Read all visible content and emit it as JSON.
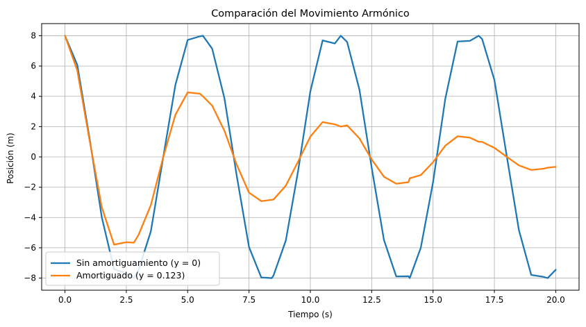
{
  "chart_data": {
    "type": "line",
    "title": "Comparación del Movimiento Armónico",
    "xlabel": "Tiempo (s)",
    "ylabel": "Posición (m)",
    "xlim": [
      -0.95,
      20.95
    ],
    "ylim": [
      -8.8,
      8.8
    ],
    "xticks": [
      0.0,
      2.5,
      5.0,
      7.5,
      10.0,
      12.5,
      15.0,
      17.5,
      20.0
    ],
    "xtick_labels": [
      "0.0",
      "2.5",
      "5.0",
      "7.5",
      "10.0",
      "12.5",
      "15.0",
      "17.5",
      "20.0"
    ],
    "yticks": [
      -8,
      -6,
      -4,
      -2,
      0,
      2,
      4,
      6,
      8
    ],
    "ytick_labels": [
      "−8",
      "−6",
      "−4",
      "−2",
      "0",
      "2",
      "4",
      "6",
      "8"
    ],
    "grid": true,
    "legend_position": "lower-left",
    "series": [
      {
        "name": "Sin amortiguamiento (y = 0)",
        "color": "#1f77b4",
        "x": [
          0,
          0.5,
          1,
          1.5,
          2,
          2.5,
          2.81,
          3,
          3.5,
          4,
          4.5,
          5,
          5.5,
          5.62,
          6,
          6.5,
          7,
          7.5,
          8,
          8.43,
          8.5,
          9,
          9.5,
          10,
          10.5,
          11,
          11.24,
          11.5,
          12,
          12.5,
          13,
          13.5,
          14,
          14.05,
          14.5,
          15,
          15.5,
          16,
          16.5,
          16.86,
          17,
          17.5,
          18,
          18.5,
          19,
          19.5,
          19.67,
          20
        ],
        "y": [
          8.0,
          6.08,
          1.25,
          -3.98,
          -7.41,
          -7.68,
          -8.0,
          -7.46,
          -4.91,
          -0.06,
          4.75,
          7.72,
          7.96,
          8.0,
          7.14,
          3.86,
          -1.25,
          -5.95,
          -7.96,
          -8.0,
          -7.82,
          -5.52,
          -0.93,
          4.33,
          7.69,
          7.49,
          8.0,
          7.58,
          4.44,
          -0.72,
          -5.49,
          -7.89,
          -7.88,
          -8.0,
          -6.0,
          -1.67,
          3.85,
          7.62,
          7.66,
          8.0,
          7.78,
          5.08,
          0.09,
          -4.84,
          -7.79,
          -7.92,
          -8.0,
          -7.45
        ]
      },
      {
        "name": "Amortiguado (y = 0.123)",
        "color": "#ff7f0e",
        "x": [
          0,
          0.5,
          1,
          1.5,
          2,
          2.5,
          2.81,
          3,
          3.5,
          4,
          4.5,
          5,
          5.5,
          5.62,
          6,
          6.5,
          7,
          7.5,
          8,
          8.43,
          8.5,
          9,
          9.5,
          10,
          10.5,
          11,
          11.24,
          11.5,
          12,
          12.5,
          13,
          13.5,
          14,
          14.05,
          14.5,
          15,
          15.5,
          16,
          16.5,
          16.86,
          17,
          17.5,
          18,
          18.5,
          19,
          19.5,
          19.67,
          20
        ],
        "y": [
          8.0,
          5.72,
          1.12,
          -3.32,
          -5.79,
          -5.63,
          -5.66,
          -5.14,
          -3.18,
          -0.04,
          2.78,
          4.26,
          4.17,
          4.0,
          3.38,
          1.72,
          -0.52,
          -2.36,
          -2.92,
          -2.83,
          -2.81,
          -1.9,
          -0.31,
          1.34,
          2.3,
          2.15,
          2.0,
          2.08,
          1.22,
          -0.17,
          -1.31,
          -1.77,
          -1.67,
          -1.41,
          -1.2,
          -0.35,
          0.74,
          1.36,
          1.27,
          1.0,
          0.99,
          0.6,
          0.01,
          -0.56,
          -0.86,
          -0.78,
          -0.71,
          -0.66
        ]
      }
    ]
  }
}
